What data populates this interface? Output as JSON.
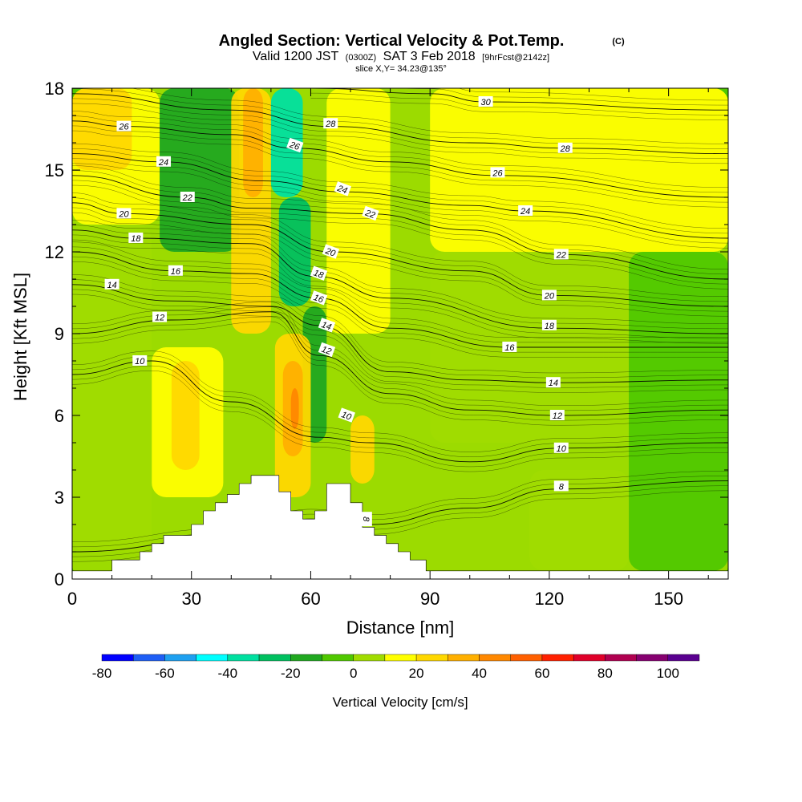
{
  "chart_data": {
    "type": "contour",
    "title_main": "Angled Section: Vertical Velocity & Pot.Temp.",
    "title_copyright": "(C)",
    "subtitle_prefix": "Valid 1200 JST",
    "subtitle_utc": "(0300Z)",
    "subtitle_date": "SAT 3 Feb 2018",
    "subtitle_fcst": "[9hrFcst@2142z]",
    "slice_label": "slice X,Y= 34.23@135°",
    "xlabel": "Distance [nm]",
    "ylabel": "Height [Kft MSL]",
    "xlim": [
      0,
      165
    ],
    "ylim": [
      0,
      18
    ],
    "x_ticks": [
      0,
      30,
      60,
      90,
      120,
      150
    ],
    "x_tick_labels": [
      "0",
      "30",
      "60",
      "90",
      "120",
      "150"
    ],
    "y_ticks": [
      0,
      3,
      6,
      9,
      12,
      15,
      18
    ],
    "y_tick_labels": [
      "0",
      "3",
      "6",
      "9",
      "12",
      "15",
      "18"
    ],
    "colorbar": {
      "label": "Vertical Velocity [cm/s]",
      "tick_values": [
        -80,
        -60,
        -40,
        -20,
        0,
        20,
        40,
        60,
        80,
        100
      ],
      "tick_labels": [
        "-80",
        "-60",
        "-40",
        "-20",
        "0",
        "20",
        "40",
        "60",
        "80",
        "100"
      ],
      "min": -80,
      "step": 10,
      "colors": [
        "#0000ff",
        "#1e5ef5",
        "#1ea0f0",
        "#00ffff",
        "#00e0a0",
        "#00c060",
        "#20a820",
        "#50c800",
        "#a0dc00",
        "#ffff00",
        "#ffd800",
        "#ffb000",
        "#ff8800",
        "#ff6000",
        "#ff2000",
        "#e0002a",
        "#b00050",
        "#860070",
        "#5a0090"
      ]
    },
    "terrain_profile_nm_kft": [
      [
        0,
        0.3
      ],
      [
        10,
        0.3
      ],
      [
        10,
        0.7
      ],
      [
        17,
        0.7
      ],
      [
        17,
        1.0
      ],
      [
        20,
        1.0
      ],
      [
        20,
        1.3
      ],
      [
        23,
        1.3
      ],
      [
        23,
        1.6
      ],
      [
        30,
        1.6
      ],
      [
        30,
        2.0
      ],
      [
        33,
        2.0
      ],
      [
        33,
        2.5
      ],
      [
        36,
        2.5
      ],
      [
        36,
        2.8
      ],
      [
        39,
        2.8
      ],
      [
        39,
        3.1
      ],
      [
        42,
        3.1
      ],
      [
        42,
        3.5
      ],
      [
        45,
        3.5
      ],
      [
        45,
        3.8
      ],
      [
        52,
        3.8
      ],
      [
        52,
        3.2
      ],
      [
        55,
        3.2
      ],
      [
        55,
        2.5
      ],
      [
        58,
        2.5
      ],
      [
        58,
        2.2
      ],
      [
        61,
        2.2
      ],
      [
        61,
        2.5
      ],
      [
        64,
        2.5
      ],
      [
        64,
        3.5
      ],
      [
        70,
        3.5
      ],
      [
        70,
        2.8
      ],
      [
        73,
        2.8
      ],
      [
        73,
        1.9
      ],
      [
        76,
        1.9
      ],
      [
        76,
        1.6
      ],
      [
        79,
        1.6
      ],
      [
        79,
        1.3
      ],
      [
        82,
        1.3
      ],
      [
        82,
        1.0
      ],
      [
        85,
        1.0
      ],
      [
        85,
        0.7
      ],
      [
        89,
        0.7
      ],
      [
        89,
        0.3
      ],
      [
        165,
        0.3
      ]
    ],
    "velocity_cells_cm_s": [
      {
        "x0": 0,
        "x1": 165,
        "y0": 0,
        "y1": 18,
        "w": 5
      },
      {
        "x0": 90,
        "x1": 165,
        "y0": 12,
        "y1": 18,
        "w": 15
      },
      {
        "x0": 90,
        "x1": 165,
        "y0": 5,
        "y1": 12,
        "w": 5
      },
      {
        "x0": 0,
        "x1": 22,
        "y0": 13,
        "y1": 18,
        "w": 15
      },
      {
        "x0": 0,
        "x1": 15,
        "y0": 15,
        "y1": 18,
        "w": 20
      },
      {
        "x0": 22,
        "x1": 42,
        "y0": 12,
        "y1": 18,
        "w": -15
      },
      {
        "x0": 40,
        "x1": 50,
        "y0": 9,
        "y1": 18,
        "w": 25
      },
      {
        "x0": 43,
        "x1": 48,
        "y0": 14,
        "y1": 18,
        "w": 35
      },
      {
        "x0": 50,
        "x1": 58,
        "y0": 14,
        "y1": 18,
        "w": -40
      },
      {
        "x0": 52,
        "x1": 60,
        "y0": 10,
        "y1": 14,
        "w": -25
      },
      {
        "x0": 58,
        "x1": 64,
        "y0": 5,
        "y1": 10,
        "w": -20
      },
      {
        "x0": 64,
        "x1": 80,
        "y0": 9,
        "y1": 18,
        "w": 15
      },
      {
        "x0": 20,
        "x1": 38,
        "y0": 3,
        "y1": 8.5,
        "w": 15
      },
      {
        "x0": 25,
        "x1": 32,
        "y0": 4,
        "y1": 8,
        "w": 25
      },
      {
        "x0": 51,
        "x1": 60,
        "y0": 3,
        "y1": 9,
        "w": 20
      },
      {
        "x0": 53,
        "x1": 58,
        "y0": 4.5,
        "y1": 8,
        "w": 35
      },
      {
        "x0": 55,
        "x1": 57,
        "y0": 5.5,
        "y1": 7,
        "w": 45
      },
      {
        "x0": 70,
        "x1": 76,
        "y0": 3.5,
        "y1": 6,
        "w": 20
      },
      {
        "x0": 0,
        "x1": 20,
        "y0": 1,
        "y1": 13,
        "w": 8
      },
      {
        "x0": 140,
        "x1": 165,
        "y0": 0.3,
        "y1": 12,
        "w": -5
      },
      {
        "x0": 115,
        "x1": 140,
        "y0": 0.3,
        "y1": 4,
        "w": 5
      }
    ],
    "isentropes": [
      {
        "label": "8",
        "pts": [
          [
            0,
            1.0
          ],
          [
            40,
            1.5
          ],
          [
            60,
            2.2
          ],
          [
            75,
            2.0
          ],
          [
            100,
            2.6
          ],
          [
            122,
            3.3
          ],
          [
            165,
            3.6
          ]
        ],
        "lx": 74,
        "ly": 2.2,
        "lrot": 90,
        "lx2": 123,
        "ly2": 3.4
      },
      {
        "label": "10",
        "pts": [
          [
            0,
            7.5
          ],
          [
            20,
            8.0
          ],
          [
            40,
            6.5
          ],
          [
            62,
            5.2
          ],
          [
            75,
            5.0
          ],
          [
            100,
            4.3
          ],
          [
            123,
            4.8
          ],
          [
            165,
            5.0
          ]
        ],
        "lx": 17,
        "ly": 8.0,
        "lx2": 123,
        "ly2": 4.8,
        "lx3": 69,
        "ly3": 6.0
      },
      {
        "label": "12",
        "pts": [
          [
            0,
            9.0
          ],
          [
            25,
            9.5
          ],
          [
            50,
            9.8
          ],
          [
            62,
            8.2
          ],
          [
            80,
            6.8
          ],
          [
            100,
            6.2
          ],
          [
            122,
            6.0
          ],
          [
            165,
            6.2
          ]
        ],
        "lx": 22,
        "ly": 9.6,
        "lx2": 122,
        "ly2": 6.0,
        "lx3": 64,
        "ly3": 8.4
      },
      {
        "label": "14",
        "pts": [
          [
            0,
            10.8
          ],
          [
            25,
            10.2
          ],
          [
            50,
            10.0
          ],
          [
            62,
            9.3
          ],
          [
            80,
            7.6
          ],
          [
            100,
            7.3
          ],
          [
            121,
            7.2
          ],
          [
            165,
            7.3
          ]
        ],
        "lx": 10,
        "ly": 10.8,
        "lx2": 121,
        "ly2": 7.2,
        "lx3": 64,
        "ly3": 9.3
      },
      {
        "label": "16",
        "pts": [
          [
            0,
            12.0
          ],
          [
            26,
            11.3
          ],
          [
            45,
            11.2
          ],
          [
            62,
            10.3
          ],
          [
            80,
            9.2
          ],
          [
            110,
            8.5
          ],
          [
            165,
            8.5
          ]
        ],
        "lx": 26,
        "ly": 11.3,
        "lx2": 110,
        "ly2": 8.5,
        "lx3": 62,
        "ly3": 10.3
      },
      {
        "label": "18",
        "pts": [
          [
            0,
            12.8
          ],
          [
            16,
            12.5
          ],
          [
            45,
            12.3
          ],
          [
            61,
            11.1
          ],
          [
            80,
            10.3
          ],
          [
            120,
            9.2
          ],
          [
            165,
            9.0
          ]
        ],
        "lx": 16,
        "ly": 12.5,
        "lx2": 120,
        "ly2": 9.3,
        "lx3": 62,
        "ly3": 11.2
      },
      {
        "label": "20",
        "pts": [
          [
            0,
            13.8
          ],
          [
            13,
            13.4
          ],
          [
            45,
            13.0
          ],
          [
            65,
            12.0
          ],
          [
            100,
            11.3
          ],
          [
            120,
            10.4
          ],
          [
            165,
            10.0
          ]
        ],
        "lx": 13,
        "ly": 13.4,
        "lx2": 120,
        "ly2": 10.4,
        "lx3": 65,
        "ly3": 12.0
      },
      {
        "label": "22",
        "pts": [
          [
            0,
            14.8
          ],
          [
            29,
            14.0
          ],
          [
            45,
            13.6
          ],
          [
            74,
            13.4
          ],
          [
            100,
            12.8
          ],
          [
            123,
            11.9
          ],
          [
            165,
            11.0
          ]
        ],
        "lx": 29,
        "ly": 14.0,
        "lx2": 123,
        "ly2": 11.9,
        "lx3": 75,
        "ly3": 13.4
      },
      {
        "label": "24",
        "pts": [
          [
            0,
            15.6
          ],
          [
            23,
            15.3
          ],
          [
            48,
            14.6
          ],
          [
            68,
            14.2
          ],
          [
            100,
            13.7
          ],
          [
            114,
            13.5
          ],
          [
            165,
            12.5
          ]
        ],
        "lx": 23,
        "ly": 15.3,
        "lx2": 114,
        "ly2": 13.5,
        "lx3": 68,
        "ly3": 14.3
      },
      {
        "label": "26",
        "pts": [
          [
            0,
            16.8
          ],
          [
            13,
            16.6
          ],
          [
            40,
            16.3
          ],
          [
            56,
            15.8
          ],
          [
            80,
            15.3
          ],
          [
            107,
            14.8
          ],
          [
            165,
            14.0
          ]
        ],
        "lx": 13,
        "ly": 16.6,
        "lx2": 107,
        "ly2": 14.9,
        "lx3": 56,
        "ly3": 15.9
      },
      {
        "label": "28",
        "pts": [
          [
            0,
            17.8
          ],
          [
            40,
            17.2
          ],
          [
            65,
            16.6
          ],
          [
            100,
            16.0
          ],
          [
            124,
            15.8
          ],
          [
            165,
            15.6
          ]
        ],
        "lx": 65,
        "ly": 16.7,
        "lx2": 124,
        "ly2": 15.8
      },
      {
        "label": "30",
        "pts": [
          [
            60,
            18.0
          ],
          [
            90,
            17.8
          ],
          [
            104,
            17.5
          ],
          [
            165,
            17.2
          ]
        ],
        "lx": 104,
        "ly": 17.5
      }
    ]
  }
}
